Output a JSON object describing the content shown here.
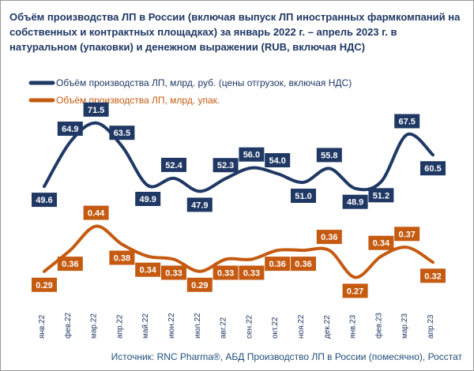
{
  "chart_data": {
    "type": "line",
    "title": "Объём производства ЛП в России (включая выпуск ЛП иностранных фармкомпаний на собственных и контрактных площадках) за январь 2022 г. – апрель 2023 г. в натуральном (упаковки) и денежном выражении (RUB, включая НДС)",
    "categories": [
      "янв.22",
      "фев.22",
      "мар.22",
      "апр.22",
      "май.22",
      "июн.22",
      "июл.22",
      "авг.22",
      "сен.22",
      "окт.22",
      "ноя.22",
      "дек.22",
      "янв.23",
      "фев.23",
      "мар.23",
      "апр.23"
    ],
    "series": [
      {
        "name": "Объём производства ЛП, млрд. руб. (цены отгрузок, включая НДС)",
        "color": "#1f3864",
        "values": [
          49.6,
          64.9,
          71.5,
          63.5,
          49.9,
          52.4,
          47.9,
          52.3,
          56.0,
          54.0,
          51.0,
          55.8,
          48.9,
          51.2,
          67.5,
          60.5
        ],
        "labels": [
          "49.6",
          "64.9",
          "71.5",
          "63.5",
          "49.9",
          "52.4",
          "47.9",
          "52.3",
          "56.0",
          "54.0",
          "51.0",
          "55.8",
          "48.9",
          "51.2",
          "67.5",
          "60.5"
        ],
        "label_side": [
          "below",
          "above",
          "above",
          "above",
          "below",
          "above",
          "below",
          "above",
          "above",
          "above",
          "below",
          "above",
          "below",
          "below",
          "above",
          "below"
        ]
      },
      {
        "name": "Объём производства ЛП, млрд. упак.",
        "color": "#c55a11",
        "values": [
          0.29,
          0.36,
          0.44,
          0.38,
          0.34,
          0.33,
          0.29,
          0.33,
          0.33,
          0.36,
          0.36,
          0.36,
          0.27,
          0.34,
          0.37,
          0.32
        ],
        "labels": [
          "0.29",
          "0.36",
          "0.44",
          "0.38",
          "0.34",
          "0.33",
          "0.29",
          "0.33",
          "0.33",
          "0.36",
          "0.36",
          "0.36",
          "0.27",
          "0.34",
          "0.37",
          "0.32"
        ],
        "label_side": [
          "below",
          "below",
          "above",
          "below",
          "below",
          "below",
          "below",
          "below",
          "below",
          "below",
          "below",
          "above",
          "below",
          "above",
          "above",
          "below"
        ]
      }
    ],
    "legend_position": "top-left",
    "grid": false
  },
  "source": "Источник: RNC Pharma®, АБД Производство ЛП в России (помесячно), Росстат"
}
